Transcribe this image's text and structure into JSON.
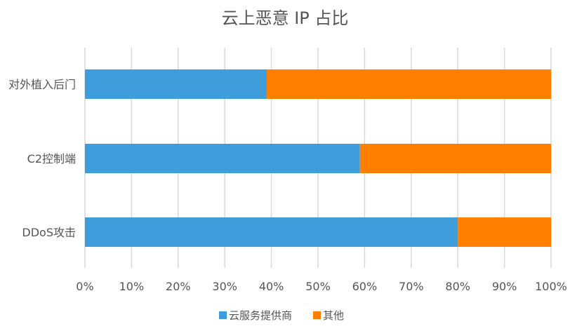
{
  "chart_data": {
    "type": "bar",
    "orientation": "horizontal",
    "stacked": true,
    "title": "云上恶意 IP 占比",
    "categories": [
      "对外植入后门",
      "C2控制端",
      "DDoS攻击"
    ],
    "series": [
      {
        "name": "云服务提供商",
        "color": "#3f9ddc",
        "values": [
          39,
          59,
          80
        ]
      },
      {
        "name": "其他",
        "color": "#ff7f00",
        "values": [
          61,
          41,
          20
        ]
      }
    ],
    "xlim": [
      0,
      100
    ],
    "x_ticks": [
      "0%",
      "10%",
      "20%",
      "30%",
      "40%",
      "50%",
      "60%",
      "70%",
      "80%",
      "90%",
      "100%"
    ],
    "grid": true,
    "legend_position": "bottom"
  }
}
